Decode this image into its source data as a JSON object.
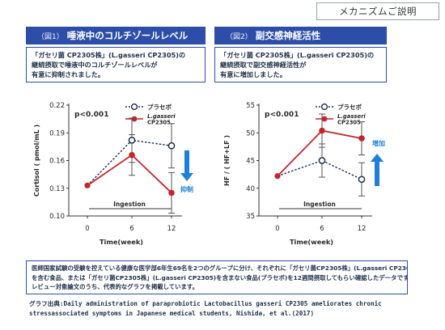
{
  "mechanism_tag": "メカニズムご説明",
  "panels": [
    {
      "figure_no": "（図1）",
      "title": "唾液中のコルチゾールレベル",
      "desc_lines": [
        "「ガセリ菌 CP2305株」(L.gasseri CP2305)の",
        "継続摂取で唾液中のコルチゾールレベルが",
        "有意に抑制されました。"
      ]
    },
    {
      "figure_no": "（図2）",
      "title": "副交感神経活性",
      "desc_lines": [
        "「ガセリ菌 CP2305株」(L.gasseri CP2305)の",
        "継続摂取で副交感神経活性が",
        "有意に増加しました。"
      ]
    }
  ],
  "chart_data": [
    {
      "type": "line",
      "title": "",
      "xlabel": "Time(week)",
      "ylabel": "Cortisol ( pmol/mL )",
      "x": [
        0,
        6,
        12
      ],
      "ylim": [
        0.1,
        0.22
      ],
      "yticks": [
        "0.10",
        "0.13",
        "0.16",
        "0.19",
        "0.22"
      ],
      "xticks": [
        "0",
        "6",
        "12"
      ],
      "pvalue": "p<0.001",
      "ingestion_label": "Ingestion",
      "annotation": "抑制",
      "annotation_direction": "down",
      "grid": false,
      "legend_position": "top-right",
      "series": [
        {
          "name": "プラセボ",
          "style": "dashed-open-circle",
          "color": "#1f2f4a",
          "values": [
            0.133,
            0.182,
            0.176
          ],
          "error": [
            0,
            0.024,
            0.024
          ]
        },
        {
          "name": "L.gasseri CP2305",
          "style": "solid-filled-circle",
          "color": "#c0262d",
          "values": [
            0.133,
            0.166,
            0.125
          ],
          "error": [
            0,
            0.022,
            0.022
          ]
        }
      ]
    },
    {
      "type": "line",
      "title": "",
      "xlabel": "Time(week)",
      "ylabel": "HF / ( HF+LF )",
      "x": [
        0,
        6,
        12
      ],
      "ylim": [
        35,
        55
      ],
      "yticks": [
        "35",
        "40",
        "45",
        "50",
        "55"
      ],
      "xticks": [
        "0",
        "6",
        "12"
      ],
      "pvalue": "p<0.001",
      "ingestion_label": "Ingestion",
      "annotation": "増加",
      "annotation_direction": "up",
      "grid": false,
      "legend_position": "top-right",
      "series": [
        {
          "name": "プラセボ",
          "style": "dashed-open-circle",
          "color": "#1f2f4a",
          "values": [
            42.2,
            45.0,
            41.6
          ],
          "error": [
            0,
            3.0,
            3.0
          ]
        },
        {
          "name": "L.gasseri CP2305",
          "style": "solid-filled-circle",
          "color": "#c0262d",
          "values": [
            42.2,
            50.4,
            49.0
          ],
          "error": [
            0,
            3.0,
            3.0
          ]
        }
      ]
    }
  ],
  "legend_labels": {
    "placebo": "プラセボ",
    "treatment_line1": "L.gasseri",
    "treatment_line2": "CP2305"
  },
  "note_lines": [
    "医師国家試験の受験を控えている健康な医学部6年生69名を2つのグループに分け、それぞれに「ガセリ菌CP2305株」(L.gasseri CP2305)",
    "を含む食品、または「ガセリ菌CP2305株」(L.gasseri CP2305)を含まない食品(プラセボ)を12週間摂取してもらい確認したデータです。",
    "レビュー対象論文のうち、代表的なグラフを掲載しています。"
  ],
  "source_lines": [
    "グラフ出典:Daily administration of paraprobiotic Lactobacillus gasseri CP2305 ameliorates chronic",
    "stressassociated symptoms in Japanese medical students, Nishida, et al.(2017)"
  ],
  "colors": {
    "header_blue": "#2d4ea8",
    "treatment_red": "#c0262d",
    "placebo_navy": "#1f2f4a",
    "arrow_blue": "#1e7fd8"
  }
}
